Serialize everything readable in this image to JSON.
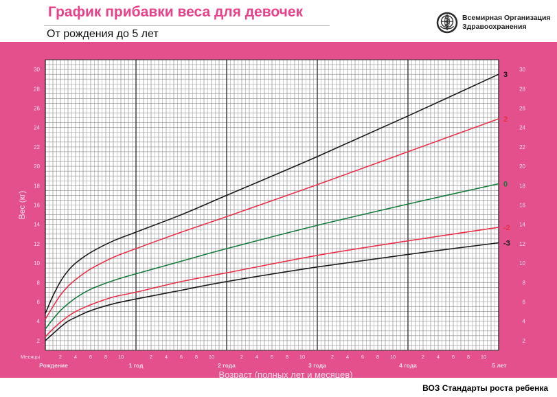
{
  "header": {
    "title": "График прибавки веса для девочек",
    "subtitle": "От рождения до 5 лет",
    "org_line1": "Всемирная Организация",
    "org_line2": "Здравоохранения"
  },
  "footer": {
    "label": "ВОЗ Стандарты роста ребенка"
  },
  "colors": {
    "panel": "#e3508c",
    "grid_bg": "#ffffff",
    "minor_grid": "#8a8a8a",
    "major_grid": "#333333",
    "title": "#e8418a",
    "axis_text_light": "#f6dbe7"
  },
  "chart_data": {
    "type": "line",
    "ylabel": "Вес (кг)",
    "xlabel": "Возраст (полных лет и месяцев)",
    "months_label": "Месяцы",
    "xlim": [
      0,
      60
    ],
    "ylim": [
      1,
      31
    ],
    "y_ticks": [
      2,
      4,
      6,
      8,
      10,
      12,
      14,
      16,
      18,
      20,
      22,
      24,
      26,
      28,
      30
    ],
    "month_ticks": [
      "2",
      "4",
      "6",
      "8",
      "10",
      "2",
      "4",
      "6",
      "8",
      "10",
      "2",
      "4",
      "6",
      "8",
      "10",
      "2",
      "4",
      "6",
      "8",
      "10",
      "2",
      "4",
      "6",
      "8",
      "10"
    ],
    "year_labels": [
      {
        "month": 0,
        "label": "Рождение"
      },
      {
        "month": 12,
        "label": "1 год"
      },
      {
        "month": 24,
        "label": "2 года"
      },
      {
        "month": 36,
        "label": "3 года"
      },
      {
        "month": 48,
        "label": "4 года"
      },
      {
        "month": 60,
        "label": "5 лет"
      }
    ],
    "grid": true,
    "series": [
      {
        "name": "3",
        "color": "#1a1a1a",
        "x": [
          0,
          1,
          2,
          3,
          4,
          6,
          9,
          12,
          18,
          24,
          36,
          48,
          60
        ],
        "y": [
          4.8,
          6.6,
          8.1,
          9.2,
          10.0,
          11.1,
          12.3,
          13.2,
          15.0,
          17.0,
          21.0,
          25.2,
          29.5
        ]
      },
      {
        "name": "2",
        "color": "#e8304a",
        "x": [
          0,
          1,
          2,
          3,
          4,
          6,
          9,
          12,
          18,
          24,
          36,
          48,
          60
        ],
        "y": [
          4.2,
          5.5,
          6.7,
          7.6,
          8.3,
          9.4,
          10.6,
          11.5,
          13.2,
          14.8,
          18.1,
          21.5,
          24.9
        ]
      },
      {
        "name": "0",
        "color": "#157a3c",
        "x": [
          0,
          1,
          2,
          3,
          4,
          6,
          9,
          12,
          18,
          24,
          36,
          48,
          60
        ],
        "y": [
          3.2,
          4.2,
          5.1,
          5.8,
          6.4,
          7.3,
          8.2,
          8.9,
          10.2,
          11.5,
          13.9,
          16.1,
          18.2
        ]
      },
      {
        "name": "-2",
        "color": "#e8304a",
        "x": [
          0,
          1,
          2,
          3,
          4,
          6,
          9,
          12,
          18,
          24,
          36,
          48,
          60
        ],
        "y": [
          2.4,
          3.2,
          3.9,
          4.5,
          5.0,
          5.7,
          6.5,
          7.0,
          8.1,
          9.0,
          10.8,
          12.3,
          13.7
        ]
      },
      {
        "name": "-3",
        "color": "#1a1a1a",
        "x": [
          0,
          1,
          2,
          3,
          4,
          6,
          9,
          12,
          18,
          24,
          36,
          48,
          60
        ],
        "y": [
          2.0,
          2.7,
          3.4,
          4.0,
          4.4,
          5.1,
          5.8,
          6.3,
          7.2,
          8.1,
          9.6,
          10.9,
          12.1
        ]
      }
    ]
  }
}
